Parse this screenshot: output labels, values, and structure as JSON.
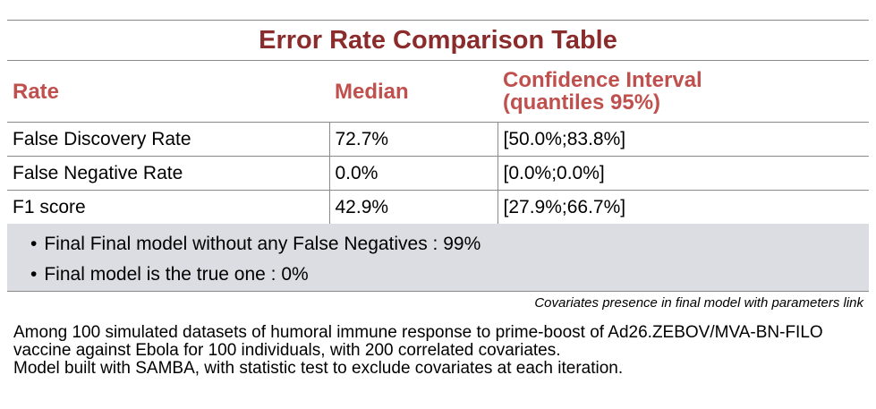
{
  "title": "Error Rate Comparison Table",
  "table": {
    "headers": [
      "Rate",
      "Median",
      "Confidence Interval\n(quantiles 95%)"
    ],
    "header_line1": "Confidence Interval",
    "header_line2": "(quantiles 95%)",
    "rows": [
      {
        "rate": "False Discovery Rate",
        "median": "72.7%",
        "ci": "[50.0%;83.8%]"
      },
      {
        "rate": "False Negative Rate",
        "median": "0.0%",
        "ci": "[0.0%;0.0%]"
      },
      {
        "rate": "F1 score",
        "median": "42.9%",
        "ci": "[27.9%;66.7%]"
      }
    ]
  },
  "notes": [
    "Final Final model without any False Negatives : 99%",
    "Final model is the true one : 0%"
  ],
  "link_text": "Covariates presence in final model with parameters link",
  "footer": {
    "line1": "Among 100 simulated datasets of humoral immune response to prime-boost of Ad26.ZEBOV/MVA-BN-FILO vaccine against Ebola for 100 individuals, with 200 correlated covariates.",
    "line2": "Model built with SAMBA, with statistic test to exclude covariates at each iteration."
  },
  "colors": {
    "title": "#8b2c2c",
    "header": "#c0504d",
    "notes_bg": "#dcdde2"
  }
}
